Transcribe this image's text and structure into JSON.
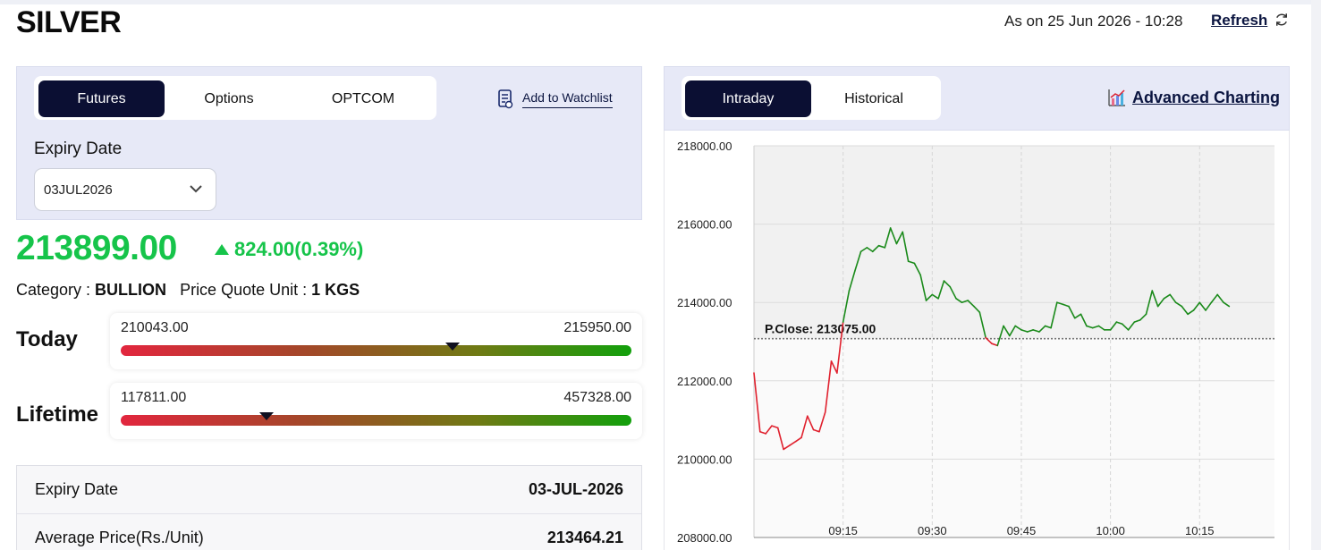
{
  "header": {
    "title": "SILVER",
    "as_on": "As on 25 Jun 2026 - 10:28",
    "refresh_label": "Refresh"
  },
  "contract_tabs": [
    {
      "label": "Futures",
      "active": true
    },
    {
      "label": "Options",
      "active": false
    },
    {
      "label": "OPTCOM",
      "active": false
    }
  ],
  "watchlist_label": "Add to Watchlist",
  "expiry": {
    "label": "Expiry Date",
    "selected": "03JUL2026"
  },
  "quote": {
    "price": "213899.00",
    "change": "824.00(0.39%)",
    "direction": "up",
    "color": "#16c44a"
  },
  "info": {
    "category_label": "Category : ",
    "category_value": "BULLION",
    "unit_label": "Price Quote Unit : ",
    "unit_value": "1 KGS"
  },
  "ranges": {
    "today": {
      "label": "Today",
      "low": "210043.00",
      "high": "215950.00",
      "marker_fraction": 0.65
    },
    "lifetime": {
      "label": "Lifetime",
      "low": "117811.00",
      "high": "457328.00",
      "marker_fraction": 0.285
    }
  },
  "details": [
    {
      "label": "Expiry Date",
      "value": "03-JUL-2026"
    },
    {
      "label": "Average Price(Rs./Unit)",
      "value": "213464.21"
    }
  ],
  "chart_tabs": [
    {
      "label": "Intraday",
      "active": true
    },
    {
      "label": "Historical",
      "active": false
    }
  ],
  "advanced_charting_label": "Advanced Charting",
  "chart_data": {
    "type": "line",
    "ylim": [
      208000,
      218000
    ],
    "yticks": [
      "218000.00",
      "216000.00",
      "214000.00",
      "212000.00",
      "210000.00",
      "208000.00"
    ],
    "xlim": [
      9.0,
      10.46
    ],
    "xticks": [
      {
        "x": 9.25,
        "label": "09:15"
      },
      {
        "x": 9.5,
        "label": "09:30"
      },
      {
        "x": 9.75,
        "label": "09:45"
      },
      {
        "x": 10.0,
        "label": "10:00"
      },
      {
        "x": 10.25,
        "label": "10:15"
      }
    ],
    "reference": {
      "label": "P.Close: 213075.00",
      "value": 213075
    },
    "up_color": "#1a8a1a",
    "down_color": "#e0212e",
    "grid": true,
    "series": [
      {
        "points": [
          [
            9.0,
            212200
          ],
          [
            9.017,
            210700
          ],
          [
            9.033,
            210650
          ],
          [
            9.05,
            210850
          ],
          [
            9.067,
            210800
          ],
          [
            9.083,
            210250
          ],
          [
            9.1,
            210350
          ],
          [
            9.117,
            210450
          ],
          [
            9.133,
            210550
          ],
          [
            9.15,
            211100
          ],
          [
            9.167,
            210750
          ],
          [
            9.183,
            210700
          ],
          [
            9.2,
            211200
          ],
          [
            9.217,
            212500
          ],
          [
            9.233,
            212200
          ],
          [
            9.25,
            213500
          ],
          [
            9.267,
            214300
          ],
          [
            9.283,
            214800
          ],
          [
            9.3,
            215300
          ],
          [
            9.317,
            215400
          ],
          [
            9.333,
            215300
          ],
          [
            9.35,
            215450
          ],
          [
            9.367,
            215400
          ],
          [
            9.383,
            215900
          ],
          [
            9.4,
            215500
          ],
          [
            9.417,
            215800
          ],
          [
            9.433,
            215050
          ],
          [
            9.45,
            215000
          ],
          [
            9.467,
            214700
          ],
          [
            9.483,
            214050
          ],
          [
            9.5,
            214200
          ],
          [
            9.517,
            214100
          ],
          [
            9.533,
            214550
          ],
          [
            9.55,
            214400
          ],
          [
            9.567,
            214100
          ],
          [
            9.583,
            214000
          ],
          [
            9.6,
            214050
          ],
          [
            9.617,
            213900
          ],
          [
            9.633,
            213750
          ],
          [
            9.65,
            213100
          ],
          [
            9.667,
            212950
          ],
          [
            9.683,
            212900
          ],
          [
            9.7,
            213400
          ],
          [
            9.717,
            213150
          ],
          [
            9.733,
            213400
          ],
          [
            9.75,
            213300
          ],
          [
            9.767,
            213250
          ],
          [
            9.783,
            213300
          ],
          [
            9.8,
            213250
          ],
          [
            9.817,
            213400
          ],
          [
            9.833,
            213350
          ],
          [
            9.85,
            214000
          ],
          [
            9.867,
            213950
          ],
          [
            9.883,
            213900
          ],
          [
            9.9,
            213600
          ],
          [
            9.917,
            213700
          ],
          [
            9.933,
            213400
          ],
          [
            9.95,
            213350
          ],
          [
            9.967,
            213400
          ],
          [
            9.983,
            213300
          ],
          [
            10.0,
            213300
          ],
          [
            10.017,
            213500
          ],
          [
            10.033,
            213450
          ],
          [
            10.05,
            213300
          ],
          [
            10.067,
            213500
          ],
          [
            10.083,
            213550
          ],
          [
            10.1,
            213700
          ],
          [
            10.117,
            214300
          ],
          [
            10.133,
            213900
          ],
          [
            10.15,
            214100
          ],
          [
            10.167,
            214200
          ],
          [
            10.183,
            214000
          ],
          [
            10.2,
            213900
          ],
          [
            10.217,
            213700
          ],
          [
            10.233,
            213800
          ],
          [
            10.25,
            214000
          ],
          [
            10.267,
            213800
          ],
          [
            10.283,
            214000
          ],
          [
            10.3,
            214200
          ],
          [
            10.317,
            214000
          ],
          [
            10.333,
            213900
          ]
        ]
      }
    ]
  }
}
